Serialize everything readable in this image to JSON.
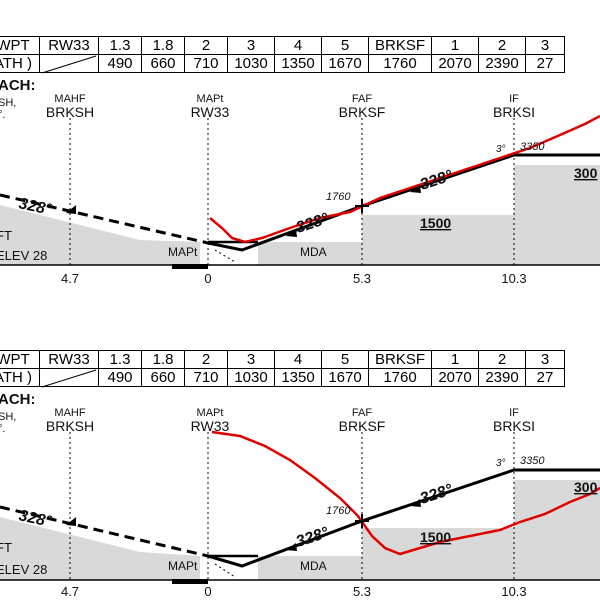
{
  "header": {
    "row1": [
      "WPT",
      "RW33",
      "1.3",
      "1.8",
      "2",
      "3",
      "4",
      "5",
      "BRKSF",
      "1",
      "2",
      "3"
    ],
    "row2": [
      "ATH )",
      "",
      "490",
      "660",
      "710",
      "1030",
      "1350",
      "1670",
      "1760",
      "2070",
      "2390",
      "27"
    ]
  },
  "approach_label": "ACH:",
  "side_text_1": "SH,",
  "side_text_2": "°.",
  "fixes": {
    "mahf": {
      "role": "MAHF",
      "name": "BRKSH"
    },
    "mapt": {
      "role": "MAPt",
      "name": "RW33"
    },
    "faf": {
      "role": "FAF",
      "name": "BRKSF"
    },
    "if": {
      "role": "IF",
      "name": "BRKSI"
    }
  },
  "distances": [
    "4.7",
    "0",
    "5.3",
    "10.3"
  ],
  "course_1": "328°",
  "course_2": "328°",
  "course_3": "328°",
  "faf_alt": "1760",
  "glide": "3°",
  "if_alt": "3350",
  "mda": "MDA",
  "mapt_label": "MAPt",
  "min_alt_1": "1500",
  "min_alt_2": "300",
  "ft": "FT",
  "elev": "ELEV 28",
  "colors": {
    "profile": "#111111",
    "track": "#e00000",
    "terrain": "#d9d9d9"
  }
}
